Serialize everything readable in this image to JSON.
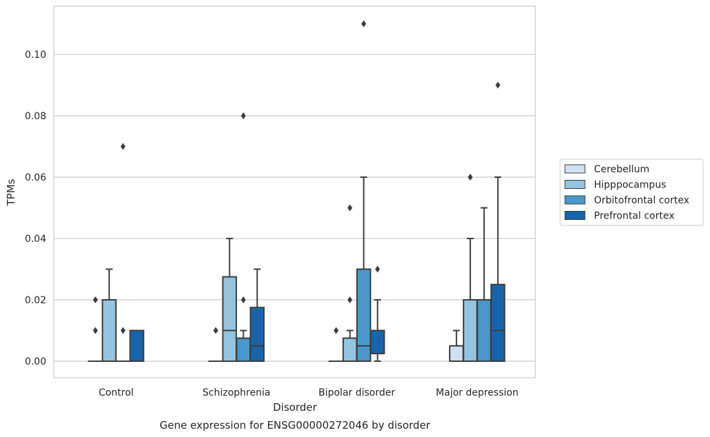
{
  "chart_data": {
    "type": "box",
    "title": "Gene expression for ENSG00000272046 by disorder",
    "xlabel": "Disorder",
    "ylabel": "TPMs",
    "ylim": [
      -0.0055,
      0.116
    ],
    "yticks": [
      "0.00",
      "0.02",
      "0.04",
      "0.06",
      "0.08",
      "0.10"
    ],
    "grid": true,
    "legend_position": "right",
    "categories": [
      "Control",
      "Schizophrenia",
      "Bipolar disorder",
      "Major depression"
    ],
    "series": [
      {
        "name": "Cerebellum",
        "color": "#d0e1f2",
        "boxes": [
          {
            "q1": 0,
            "median": 0,
            "q3": 0,
            "whisker_low": 0,
            "whisker_high": 0,
            "outliers": [
              0.01,
              0.02
            ]
          },
          {
            "q1": 0,
            "median": 0,
            "q3": 0,
            "whisker_low": 0,
            "whisker_high": 0,
            "outliers": [
              0.01
            ]
          },
          {
            "q1": 0,
            "median": 0,
            "q3": 0,
            "whisker_low": 0,
            "whisker_high": 0,
            "outliers": [
              0.01
            ]
          },
          {
            "q1": 0,
            "median": 0,
            "q3": 0.005,
            "whisker_low": 0,
            "whisker_high": 0.01,
            "outliers": []
          }
        ]
      },
      {
        "name": "Hipppocampus",
        "color": "#94c4df",
        "boxes": [
          {
            "q1": 0,
            "median": 0,
            "q3": 0.02,
            "whisker_low": 0,
            "whisker_high": 0.03,
            "outliers": []
          },
          {
            "q1": 0,
            "median": 0.01,
            "q3": 0.0275,
            "whisker_low": 0,
            "whisker_high": 0.04,
            "outliers": []
          },
          {
            "q1": 0,
            "median": 0,
            "q3": 0.0075,
            "whisker_low": 0,
            "whisker_high": 0.01,
            "outliers": [
              0.02,
              0.05
            ]
          },
          {
            "q1": 0,
            "median": 0,
            "q3": 0.02,
            "whisker_low": 0,
            "whisker_high": 0.04,
            "outliers": [
              0.06
            ]
          }
        ]
      },
      {
        "name": "Orbitofrontal cortex",
        "color": "#4a98c9",
        "boxes": [
          {
            "q1": 0,
            "median": 0,
            "q3": 0,
            "whisker_low": 0,
            "whisker_high": 0,
            "outliers": [
              0.01,
              0.07
            ]
          },
          {
            "q1": 0,
            "median": 0,
            "q3": 0.0075,
            "whisker_low": 0,
            "whisker_high": 0.01,
            "outliers": [
              0.02,
              0.08
            ]
          },
          {
            "q1": 0,
            "median": 0.005,
            "q3": 0.03,
            "whisker_low": 0,
            "whisker_high": 0.06,
            "outliers": [
              0.11
            ]
          },
          {
            "q1": 0,
            "median": 0,
            "q3": 0.02,
            "whisker_low": 0,
            "whisker_high": 0.05,
            "outliers": []
          }
        ]
      },
      {
        "name": "Prefrontal cortex",
        "color": "#1764ab",
        "boxes": [
          {
            "q1": 0,
            "median": 0,
            "q3": 0.01,
            "whisker_low": 0,
            "whisker_high": 0.01,
            "outliers": []
          },
          {
            "q1": 0,
            "median": 0.005,
            "q3": 0.0175,
            "whisker_low": 0,
            "whisker_high": 0.03,
            "outliers": []
          },
          {
            "q1": 0.0025,
            "median": 0.0025,
            "q3": 0.01,
            "whisker_low": 0,
            "whisker_high": 0.02,
            "outliers": [
              0.03
            ]
          },
          {
            "q1": 0,
            "median": 0.01,
            "q3": 0.025,
            "whisker_low": 0,
            "whisker_high": 0.06,
            "outliers": [
              0.09
            ]
          }
        ]
      }
    ]
  }
}
